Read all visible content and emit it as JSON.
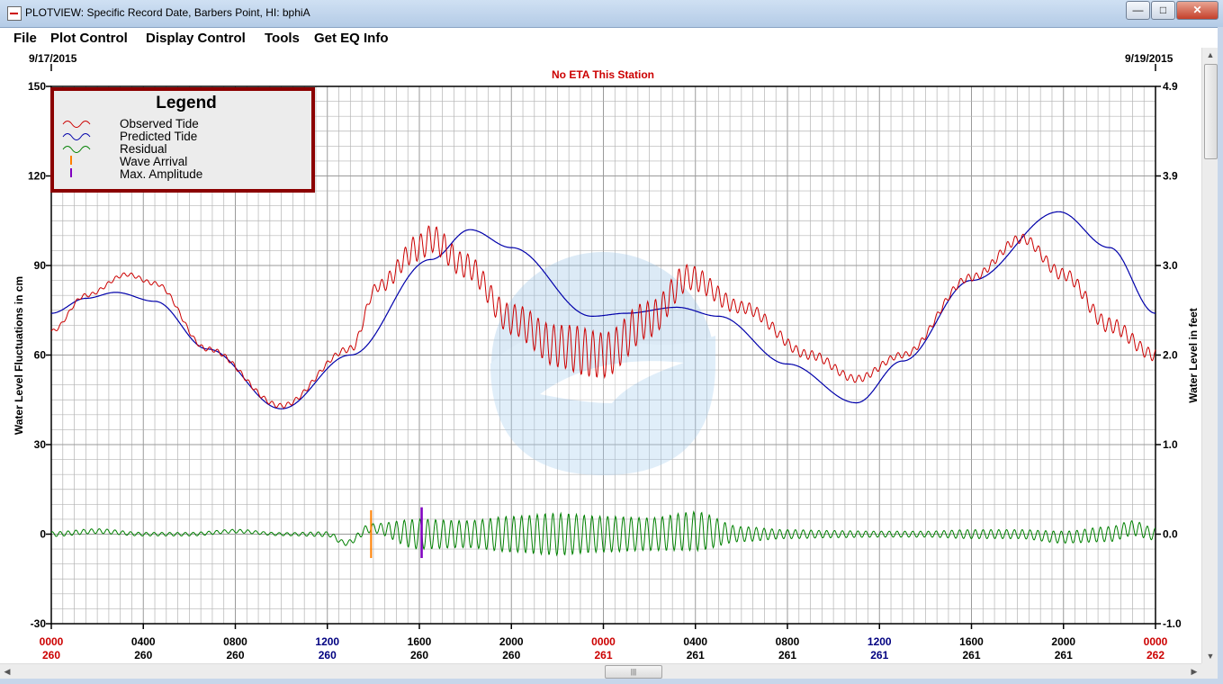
{
  "window": {
    "title": "PLOTVIEW: Specific Record Date, Barbers Point, HI: bphiA"
  },
  "menu": [
    "File",
    "Plot Control",
    "Display Control",
    "Tools",
    "Get EQ Info"
  ],
  "window_buttons": {
    "minimize": "—",
    "maximize": "□",
    "close": "✕"
  },
  "scrollbar": {
    "grip": "|||"
  },
  "colors": {
    "observed": "#cc0000",
    "predicted": "#0000aa",
    "residual": "#008000",
    "arrival": "#ff8000",
    "maxamp": "#8000c0",
    "legend_border": "#8b0000",
    "eta_text": "#cc0000",
    "grid": "#b4b4b4"
  },
  "chart_data": {
    "type": "line",
    "title": "No ETA This Station",
    "start_date": "9/17/2015",
    "end_date": "9/19/2015",
    "ylabel": "Water Level Fluctuations in cm",
    "ylabel_right": "Water Level in feet",
    "ylim": [
      -30,
      150
    ],
    "ylim_right": [
      -1.0,
      4.9
    ],
    "xlim_hours": [
      0,
      48
    ],
    "yticks_left": [
      "150",
      "120",
      "90",
      "60",
      "30",
      "0",
      "-30"
    ],
    "yticks_right": [
      "4.9",
      "3.9",
      "3.0",
      "2.0",
      "1.0",
      "0.0",
      "-1.0"
    ],
    "x_ticks": [
      {
        "time": "0000",
        "day": "260",
        "color": "#cc0000"
      },
      {
        "time": "0400",
        "day": "260",
        "color": "#000000"
      },
      {
        "time": "0800",
        "day": "260",
        "color": "#000000"
      },
      {
        "time": "1200",
        "day": "260",
        "color": "#000080"
      },
      {
        "time": "1600",
        "day": "260",
        "color": "#000000"
      },
      {
        "time": "2000",
        "day": "260",
        "color": "#000000"
      },
      {
        "time": "0000",
        "day": "261",
        "color": "#cc0000"
      },
      {
        "time": "0400",
        "day": "261",
        "color": "#000000"
      },
      {
        "time": "0800",
        "day": "261",
        "color": "#000000"
      },
      {
        "time": "1200",
        "day": "261",
        "color": "#000080"
      },
      {
        "time": "1600",
        "day": "261",
        "color": "#000000"
      },
      {
        "time": "2000",
        "day": "261",
        "color": "#000000"
      },
      {
        "time": "0000",
        "day": "262",
        "color": "#cc0000"
      }
    ],
    "legend": {
      "title": "Legend",
      "items": [
        {
          "label": "Observed Tide",
          "kind": "wave",
          "color": "#cc0000"
        },
        {
          "label": "Predicted Tide",
          "kind": "wave",
          "color": "#0000aa"
        },
        {
          "label": "Residual",
          "kind": "wave",
          "color": "#008000"
        },
        {
          "label": "Wave Arrival",
          "kind": "bar",
          "color": "#ff8000"
        },
        {
          "label": "Max. Amplitude",
          "kind": "bar",
          "color": "#8000c0"
        }
      ]
    },
    "series": [
      {
        "name": "Predicted Tide",
        "x": [
          0,
          1.5,
          2.8,
          4.5,
          6.8,
          10,
          13,
          16.5,
          18.2,
          20,
          23.5,
          25,
          27.2,
          29,
          32,
          35,
          37,
          40,
          43.8,
          46,
          48
        ],
        "y": [
          74,
          79,
          81,
          78,
          62,
          42,
          60,
          92,
          102,
          96,
          73,
          74,
          76,
          73,
          57,
          44,
          58,
          85,
          108,
          96,
          74
        ]
      },
      {
        "name": "Observed Tide",
        "x": [
          0,
          1.5,
          3.3,
          4.5,
          6.8,
          10,
          13,
          14.2,
          16,
          16.5,
          18,
          20,
          22,
          24,
          26,
          27.7,
          30,
          33,
          35,
          37,
          40,
          42.2,
          44,
          46,
          48
        ],
        "y": [
          68,
          80,
          87,
          84,
          62,
          43,
          62,
          83,
          96,
          99,
          90,
          72,
          63,
          60,
          72,
          86,
          76,
          60,
          52,
          60,
          86,
          99,
          87,
          70,
          60
        ]
      },
      {
        "name": "Residual",
        "x": [
          0,
          2,
          4,
          6,
          8,
          10,
          12,
          12.8,
          13.9,
          16,
          18,
          20,
          22,
          24,
          26,
          28,
          30,
          32,
          34,
          36,
          38,
          40,
          42,
          44,
          46,
          47,
          48
        ],
        "y": [
          0,
          1,
          0,
          0,
          1,
          0,
          0,
          -3,
          2,
          0,
          0,
          0,
          0,
          0,
          0,
          1,
          0,
          0,
          0,
          0,
          0,
          0,
          0,
          -1,
          0,
          2,
          0
        ],
        "oscillation_amplitude": [
          0.8,
          0.8,
          0.6,
          0.6,
          0.6,
          0.5,
          0.8,
          0.8,
          1.5,
          5,
          4.5,
          6,
          7,
          6,
          5.5,
          6.5,
          2.5,
          1.5,
          1.2,
          1,
          1,
          1.5,
          1.5,
          2,
          2.5,
          2.5,
          2
        ]
      }
    ],
    "observed_oscillation": {
      "x": [
        0,
        12,
        13.9,
        15,
        16,
        17,
        18,
        19,
        20,
        21,
        22,
        23,
        24,
        25,
        26,
        27,
        28,
        29,
        30,
        33,
        35,
        37,
        40,
        42,
        44,
        46,
        48
      ],
      "amplitude": [
        0.6,
        0.8,
        1.5,
        3,
        4.5,
        4.5,
        4,
        4,
        5,
        6,
        7,
        8,
        7.5,
        7,
        6,
        5,
        4,
        3,
        2,
        1.5,
        1.2,
        1,
        1.2,
        1.5,
        2,
        2.5,
        2
      ]
    },
    "wave_arrival": {
      "x": 13.9,
      "y_min": -8,
      "y_max": 8
    },
    "max_amplitude": {
      "x": 16.1,
      "y_min": -8,
      "y_max": 9
    }
  }
}
